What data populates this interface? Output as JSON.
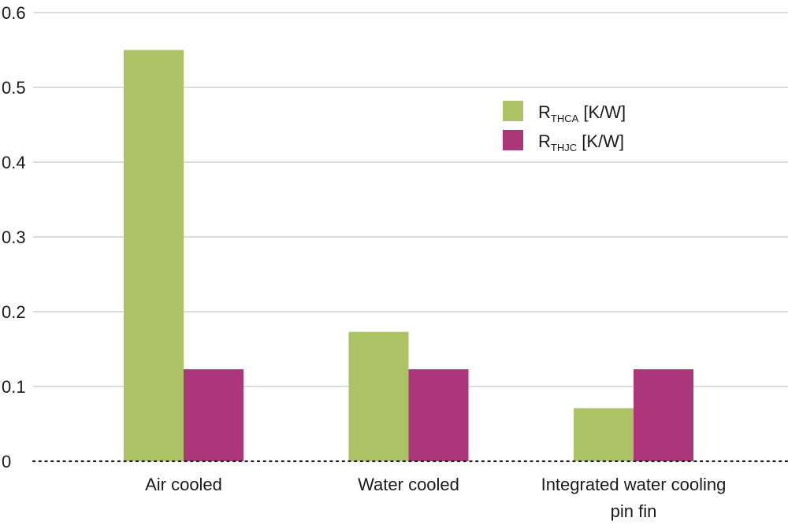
{
  "chart_data": {
    "type": "bar",
    "categories": [
      [
        "Air cooled"
      ],
      [
        "Water cooled"
      ],
      [
        "Integrated water cooling",
        "pin fin"
      ]
    ],
    "series": [
      {
        "name_main": "R",
        "name_sub": "THCA",
        "name_unit": " [K/W]",
        "color": "#adc265",
        "values": [
          0.55,
          0.173,
          0.071
        ]
      },
      {
        "name_main": "R",
        "name_sub": "THJC",
        "name_unit": " [K/W]",
        "color": "#ab3679",
        "values": [
          0.123,
          0.123,
          0.123
        ]
      }
    ],
    "yticks": [
      "0",
      "0.1",
      "0.2",
      "0.3",
      "0.4",
      "0.5",
      "0.6"
    ],
    "ylim": [
      0,
      0.6
    ],
    "grid": true,
    "legend_position": "top-right",
    "title": "",
    "xlabel": "",
    "ylabel": ""
  }
}
